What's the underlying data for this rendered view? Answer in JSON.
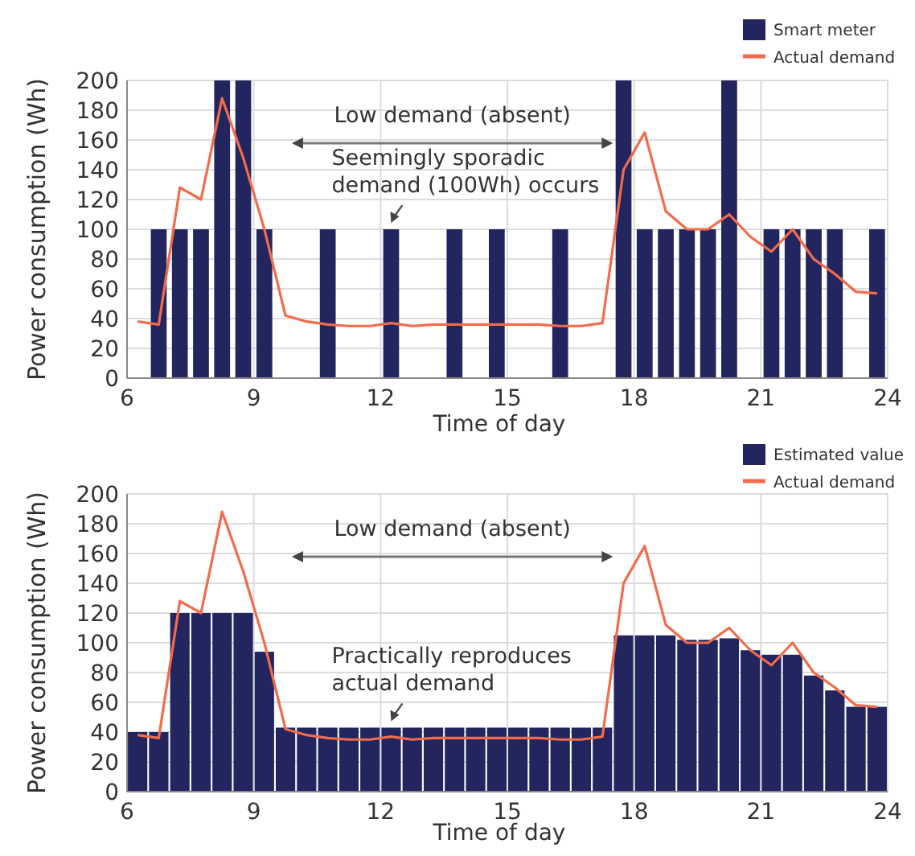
{
  "chart_data": [
    {
      "type": "bar",
      "x": [
        6.25,
        6.75,
        7.25,
        7.75,
        8.25,
        8.75,
        9.25,
        9.75,
        10.25,
        10.75,
        11.25,
        11.75,
        12.25,
        12.75,
        13.25,
        13.75,
        14.25,
        14.75,
        15.25,
        15.75,
        16.25,
        16.75,
        17.25,
        17.75,
        18.25,
        18.75,
        19.25,
        19.75,
        20.25,
        20.75,
        21.25,
        21.75,
        22.25,
        22.75,
        23.25,
        23.75
      ],
      "series": [
        {
          "name": "Smart meter",
          "color": "#23255f",
          "values": [
            0,
            100,
            100,
            100,
            200,
            200,
            100,
            0,
            0,
            100,
            0,
            0,
            100,
            0,
            0,
            100,
            0,
            100,
            0,
            0,
            100,
            0,
            0,
            200,
            100,
            100,
            100,
            100,
            200,
            0,
            100,
            100,
            100,
            100,
            0,
            100
          ]
        },
        {
          "name": "Actual demand",
          "type": "line",
          "color": "#f26b4a",
          "values": [
            38,
            36,
            128,
            120,
            188,
            148,
            100,
            42,
            38,
            36,
            35,
            35,
            37,
            35,
            36,
            36,
            36,
            36,
            36,
            36,
            35,
            35,
            37,
            140,
            165,
            112,
            100,
            100,
            110,
            95,
            85,
            100,
            80,
            70,
            58,
            57
          ]
        }
      ],
      "xlabel": "Time of day",
      "ylabel": "Power consumption (Wh)",
      "xlim": [
        6,
        24
      ],
      "ylim": [
        0,
        200
      ],
      "xticks": [
        6,
        9,
        12,
        15,
        18,
        21,
        24
      ],
      "yticks": [
        0,
        20,
        40,
        60,
        80,
        100,
        120,
        140,
        160,
        180,
        200
      ],
      "grid": true,
      "legend": "top right",
      "annotations": [
        "Low demand (absent)",
        {
          "text": "Seemingly sporadic demand (100Wh) occurs",
          "x": 12.25,
          "y": 100
        }
      ]
    },
    {
      "type": "bar",
      "x": [
        6.25,
        6.75,
        7.25,
        7.75,
        8.25,
        8.75,
        9.25,
        9.75,
        10.25,
        10.75,
        11.25,
        11.75,
        12.25,
        12.75,
        13.25,
        13.75,
        14.25,
        14.75,
        15.25,
        15.75,
        16.25,
        16.75,
        17.25,
        17.75,
        18.25,
        18.75,
        19.25,
        19.75,
        20.25,
        20.75,
        21.25,
        21.75,
        22.25,
        22.75,
        23.25,
        23.75
      ],
      "series": [
        {
          "name": "Estimated value",
          "color": "#23255f",
          "values": [
            40,
            40,
            120,
            120,
            120,
            120,
            94,
            43,
            43,
            43,
            43,
            43,
            43,
            43,
            43,
            43,
            43,
            43,
            43,
            43,
            43,
            43,
            43,
            105,
            105,
            105,
            102,
            102,
            103,
            95,
            92,
            92,
            78,
            68,
            57,
            57
          ]
        },
        {
          "name": "Actual demand",
          "type": "line",
          "color": "#f26b4a",
          "values": [
            38,
            36,
            128,
            120,
            188,
            148,
            100,
            42,
            38,
            36,
            35,
            35,
            37,
            35,
            36,
            36,
            36,
            36,
            36,
            36,
            35,
            35,
            37,
            140,
            165,
            112,
            100,
            100,
            110,
            95,
            85,
            100,
            80,
            70,
            58,
            57
          ]
        }
      ],
      "xlabel": "Time of day",
      "ylabel": "Power consumption (Wh)",
      "xlim": [
        6,
        24
      ],
      "ylim": [
        0,
        200
      ],
      "xticks": [
        6,
        9,
        12,
        15,
        18,
        21,
        24
      ],
      "yticks": [
        0,
        20,
        40,
        60,
        80,
        100,
        120,
        140,
        160,
        180,
        200
      ],
      "grid": true,
      "legend": "top right",
      "annotations": [
        "Low demand (absent)",
        {
          "text": "Practically reproduces actual demand",
          "x": 12.25,
          "y": 43
        }
      ]
    }
  ]
}
